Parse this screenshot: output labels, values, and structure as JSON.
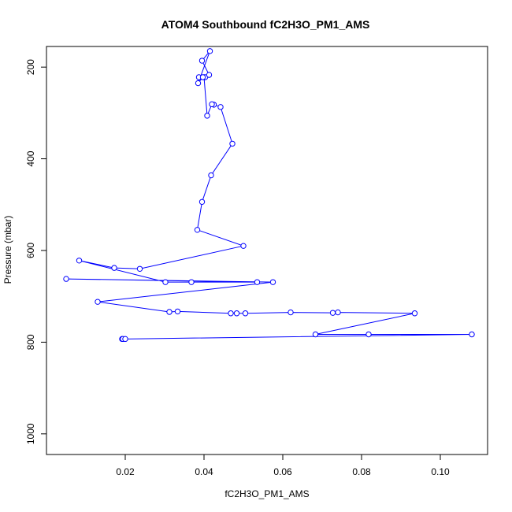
{
  "chart_data": {
    "type": "line",
    "title": "ATOM4 Southbound fC2H3O_PM1_AMS",
    "xlabel": "fC2H3O_PM1_AMS",
    "ylabel": "Pressure (mbar)",
    "xlim": [
      0.0,
      0.112
    ],
    "ylim": [
      155,
      1045
    ],
    "y_reversed": true,
    "x_ticks": [
      0.02,
      0.04,
      0.06,
      0.08,
      0.1
    ],
    "x_tick_labels": [
      "0.02",
      "0.04",
      "0.06",
      "0.08",
      "0.10"
    ],
    "y_ticks": [
      200,
      400,
      600,
      800,
      1000
    ],
    "y_tick_labels": [
      "200",
      "400",
      "600",
      "800",
      "1000"
    ],
    "grid": false,
    "color": "#0000ff",
    "series": [
      {
        "points": [
          [
            0.0192,
            793
          ],
          [
            0.0194,
            793
          ],
          [
            0.02,
            793
          ],
          [
            0.108,
            783
          ],
          [
            0.0818,
            783
          ],
          [
            0.0683,
            783
          ],
          [
            0.0935,
            737
          ],
          [
            0.074,
            735
          ],
          [
            0.0727,
            736
          ],
          [
            0.062,
            735
          ],
          [
            0.0505,
            737
          ],
          [
            0.0483,
            737
          ],
          [
            0.0468,
            737
          ],
          [
            0.0333,
            733
          ],
          [
            0.0312,
            734
          ],
          [
            0.013,
            712
          ],
          [
            0.0575,
            669
          ],
          [
            0.005,
            662
          ],
          [
            0.0535,
            669
          ],
          [
            0.0368,
            669
          ],
          [
            0.0302,
            669
          ],
          [
            0.0083,
            622
          ],
          [
            0.0172,
            638
          ],
          [
            0.0237,
            640
          ],
          [
            0.05,
            590
          ],
          [
            0.0383,
            555
          ],
          [
            0.0395,
            494
          ],
          [
            0.0418,
            436
          ],
          [
            0.0472,
            367
          ],
          [
            0.0442,
            287
          ],
          [
            0.0425,
            282
          ],
          [
            0.042,
            281
          ],
          [
            0.0408,
            306
          ],
          [
            0.04,
            222
          ],
          [
            0.0387,
            222
          ],
          [
            0.0403,
            222
          ],
          [
            0.0413,
            217
          ],
          [
            0.0395,
            186
          ],
          [
            0.0415,
            165
          ],
          [
            0.0385,
            235
          ],
          [
            0.0397,
            222
          ]
        ]
      }
    ]
  }
}
